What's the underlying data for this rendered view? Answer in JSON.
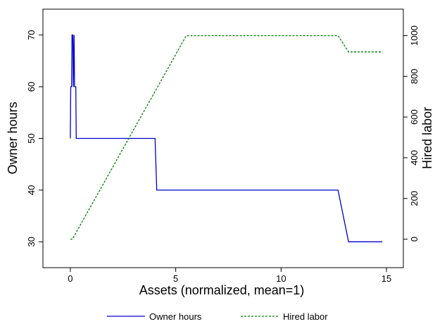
{
  "chart_data": {
    "type": "line",
    "title": "",
    "xlabel": "Assets (normalized, mean=1)",
    "ylabel_left": "Owner hours",
    "ylabel_right": "Hired labor",
    "xlim": [
      -1.3,
      15.8
    ],
    "ylim_left": [
      25,
      75
    ],
    "ylim_right": [
      -140,
      1130
    ],
    "xticks": [
      0,
      5,
      10,
      15
    ],
    "yticks_left": [
      30,
      40,
      50,
      60,
      70
    ],
    "yticks_right": [
      0,
      200,
      400,
      600,
      800,
      1000
    ],
    "grid": false,
    "legend_position": "bottom",
    "series": [
      {
        "name": "Owner hours",
        "axis": "left",
        "color": "#0000cc",
        "style": "solid",
        "x": [
          0.0,
          0.02,
          0.06,
          0.08,
          0.12,
          0.14,
          0.18,
          0.2,
          0.26,
          0.28,
          0.34,
          0.36,
          4.0,
          4.02,
          4.1,
          12.7,
          13.2,
          14.8
        ],
        "y": [
          50,
          60,
          60,
          70,
          70,
          60,
          70,
          60,
          60,
          50,
          50,
          50,
          50,
          50,
          40,
          40,
          30,
          30
        ]
      },
      {
        "name": "Hired labor",
        "axis": "right",
        "color": "#008000",
        "style": "dashed",
        "x": [
          0.0,
          0.1,
          5.5,
          12.7,
          13.2,
          14.8
        ],
        "y": [
          0,
          0,
          1000,
          1000,
          920,
          920
        ]
      }
    ]
  }
}
